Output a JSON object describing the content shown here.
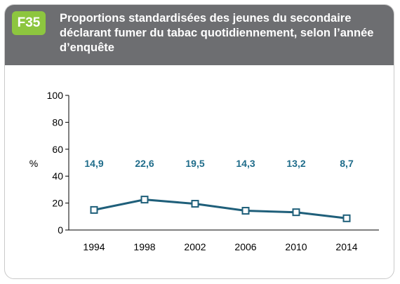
{
  "figure": {
    "badge": "F35",
    "title": "Proportions standardisées des jeunes du secondaire déclarant fumer du tabac quotidiennement, selon l’année d’enquête"
  },
  "colors": {
    "header_bg": "#6d6e71",
    "badge_bg": "#8dc63f",
    "series": "#1f5f7a",
    "label": "#1f6c8a"
  },
  "chart_data": {
    "type": "line",
    "title": "Proportions standardisées des jeunes du secondaire déclarant fumer du tabac quotidiennement, selon l’année d’enquête",
    "ylabel": "%",
    "xlabel": "",
    "categories": [
      "1994",
      "1998",
      "2002",
      "2006",
      "2010",
      "2014"
    ],
    "values": [
      14.9,
      22.6,
      19.5,
      14.3,
      13.2,
      8.7
    ],
    "value_labels": [
      "14,9",
      "22,6",
      "19,5",
      "14,3",
      "13,2",
      "8,7"
    ],
    "ylim": [
      0,
      100
    ],
    "yticks": [
      "0",
      "20",
      "40",
      "60",
      "80",
      "100"
    ],
    "grid": false,
    "legend": "none",
    "marker": "open-square"
  }
}
